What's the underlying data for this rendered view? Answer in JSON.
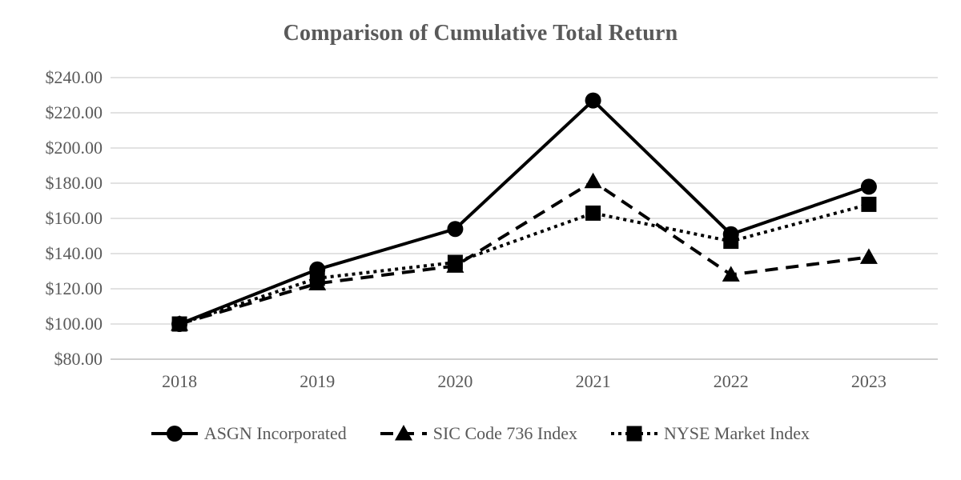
{
  "chart_data": {
    "type": "line",
    "title": "Comparison of Cumulative Total Return",
    "categories": [
      "2018",
      "2019",
      "2020",
      "2021",
      "2022",
      "2023"
    ],
    "series": [
      {
        "name": "ASGN Incorporated",
        "marker": "circle",
        "line_style": "solid",
        "values": [
          100,
          131,
          154,
          227,
          151,
          178
        ]
      },
      {
        "name": "SIC Code 736 Index",
        "marker": "triangle",
        "line_style": "dashed",
        "values": [
          100,
          123,
          133,
          181,
          128,
          138
        ]
      },
      {
        "name": "NYSE Market Index",
        "marker": "square",
        "line_style": "dotted",
        "values": [
          100,
          126,
          135,
          163,
          147,
          168
        ]
      }
    ],
    "y_ticks": [
      "$240.00",
      "$220.00",
      "$200.00",
      "$180.00",
      "$160.00",
      "$140.00",
      "$120.00",
      "$100.00",
      "$80.00"
    ],
    "y_min": 80,
    "y_max": 240,
    "y_step": 20,
    "grid": true,
    "legend_position": "bottom",
    "colors": {
      "series_line": "#000000",
      "text": "#595959",
      "gridline": "#d9d9d9",
      "axis_line": "#bfbfbf",
      "background": "#ffffff"
    }
  }
}
